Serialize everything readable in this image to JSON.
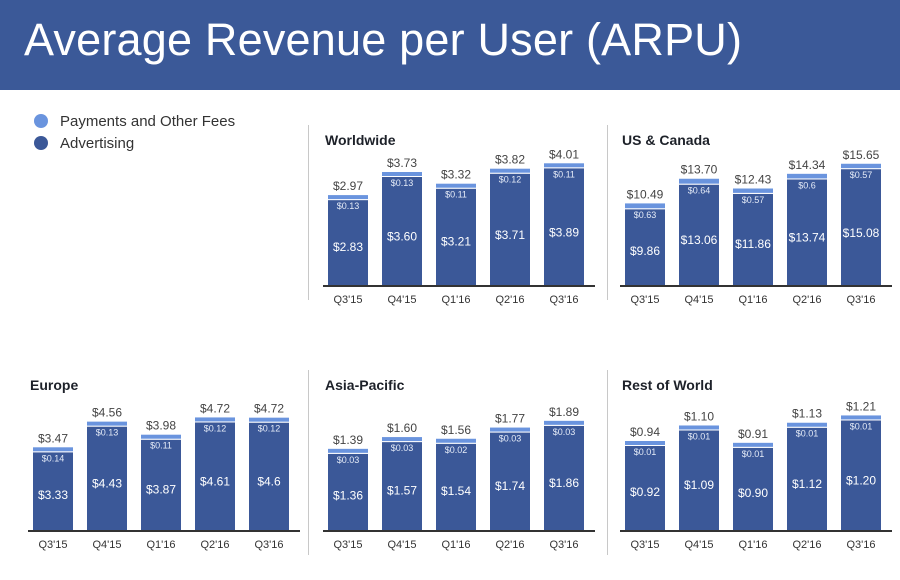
{
  "header": {
    "title": "Average Revenue per User (ARPU)"
  },
  "legend": [
    {
      "label": "Payments and Other Fees",
      "color": "#6a94de"
    },
    {
      "label": "Advertising",
      "color": "#3b5898"
    }
  ],
  "colors": {
    "advertising": "#3b5898",
    "payments": "#6a94de",
    "axis": "#333333",
    "label": "#444444"
  },
  "chart_data": [
    {
      "type": "bar",
      "stacked": true,
      "title": "Worldwide",
      "categories": [
        "Q3'15",
        "Q4'15",
        "Q1'16",
        "Q2'16",
        "Q3'16"
      ],
      "series": [
        {
          "name": "Advertising",
          "values": [
            2.83,
            3.6,
            3.21,
            3.71,
            3.89
          ],
          "labels": [
            "$2.83",
            "$3.60",
            "$3.21",
            "$3.71",
            "$3.89"
          ]
        },
        {
          "name": "Payments and Other Fees",
          "values": [
            0.13,
            0.13,
            0.11,
            0.12,
            0.11
          ],
          "labels": [
            "$0.13",
            "$0.13",
            "$0.11",
            "$0.12",
            "$0.11"
          ]
        }
      ],
      "totals": [
        "$2.97",
        "$3.73",
        "$3.32",
        "$3.82",
        "$4.01"
      ],
      "ylim": [
        0,
        4.2
      ]
    },
    {
      "type": "bar",
      "stacked": true,
      "title": "US & Canada",
      "categories": [
        "Q3'15",
        "Q4'15",
        "Q1'16",
        "Q2'16",
        "Q3'16"
      ],
      "series": [
        {
          "name": "Advertising",
          "values": [
            9.86,
            13.06,
            11.86,
            13.74,
            15.08
          ],
          "labels": [
            "$9.86",
            "$13.06",
            "$11.86",
            "$13.74",
            "$15.08"
          ]
        },
        {
          "name": "Payments and Other Fees",
          "values": [
            0.63,
            0.64,
            0.57,
            0.6,
            0.57
          ],
          "labels": [
            "$0.63",
            "$0.64",
            "$0.57",
            "$0.6",
            "$0.57"
          ]
        }
      ],
      "totals": [
        "$10.49",
        "$13.70",
        "$12.43",
        "$14.34",
        "$15.65"
      ],
      "ylim": [
        0,
        16.4
      ]
    },
    {
      "type": "bar",
      "stacked": true,
      "title": "Europe",
      "categories": [
        "Q3'15",
        "Q4'15",
        "Q1'16",
        "Q2'16",
        "Q3'16"
      ],
      "series": [
        {
          "name": "Advertising",
          "values": [
            3.33,
            4.43,
            3.87,
            4.61,
            4.6
          ],
          "labels": [
            "$3.33",
            "$4.43",
            "$3.87",
            "$4.61",
            "$4.6"
          ]
        },
        {
          "name": "Payments and Other Fees",
          "values": [
            0.14,
            0.13,
            0.11,
            0.12,
            0.12
          ],
          "labels": [
            "$0.14",
            "$0.13",
            "$0.11",
            "$0.12",
            "$0.12"
          ]
        }
      ],
      "totals": [
        "$3.47",
        "$4.56",
        "$3.98",
        "$4.72",
        "$4.72"
      ],
      "ylim": [
        0,
        5.4
      ]
    },
    {
      "type": "bar",
      "stacked": true,
      "title": "Asia-Pacific",
      "categories": [
        "Q3'15",
        "Q4'15",
        "Q1'16",
        "Q2'16",
        "Q3'16"
      ],
      "series": [
        {
          "name": "Advertising",
          "values": [
            1.36,
            1.57,
            1.54,
            1.74,
            1.86
          ],
          "labels": [
            "$1.36",
            "$1.57",
            "$1.54",
            "$1.74",
            "$1.86"
          ]
        },
        {
          "name": "Payments and Other Fees",
          "values": [
            0.03,
            0.03,
            0.02,
            0.03,
            0.03
          ],
          "labels": [
            "$0.03",
            "$0.03",
            "$0.02",
            "$0.03",
            "$0.03"
          ]
        }
      ],
      "totals": [
        "$1.39",
        "$1.60",
        "$1.56",
        "$1.77",
        "$1.89"
      ],
      "ylim": [
        0,
        2.25
      ]
    },
    {
      "type": "bar",
      "stacked": true,
      "title": "Rest of World",
      "categories": [
        "Q3'15",
        "Q4'15",
        "Q1'16",
        "Q2'16",
        "Q3'16"
      ],
      "series": [
        {
          "name": "Advertising",
          "values": [
            0.92,
            1.09,
            0.9,
            1.12,
            1.2
          ],
          "labels": [
            "$0.92",
            "$1.09",
            "$0.90",
            "$1.12",
            "$1.20"
          ]
        },
        {
          "name": "Payments and Other Fees",
          "values": [
            0.01,
            0.01,
            0.01,
            0.01,
            0.01
          ],
          "labels": [
            "$0.01",
            "$0.01",
            "$0.01",
            "$0.01",
            "$0.01"
          ]
        }
      ],
      "totals": [
        "$0.94",
        "$1.10",
        "$0.91",
        "$1.13",
        "$1.21"
      ],
      "ylim": [
        0,
        1.38
      ]
    }
  ]
}
